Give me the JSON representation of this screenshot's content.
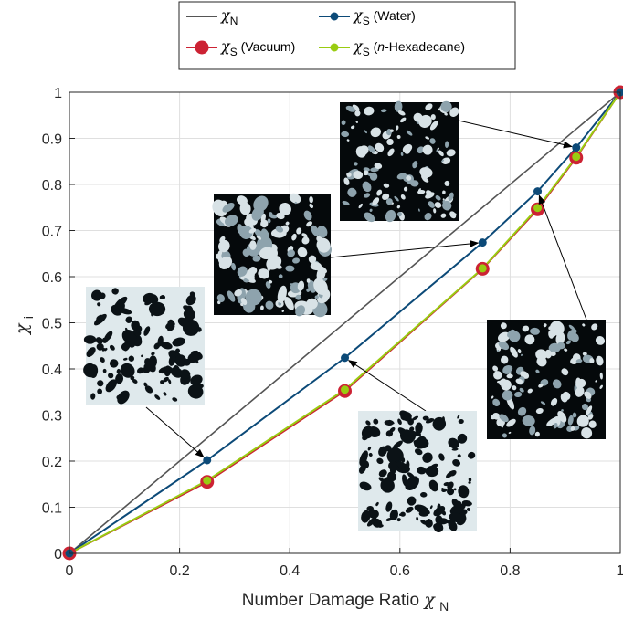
{
  "chart_data": {
    "type": "line",
    "title": "",
    "xlabel": "Number Damage Ratio",
    "xlabel_symbol": "χ",
    "xlabel_sub": "N",
    "ylabel_symbol": "χ",
    "ylabel_sub": "i",
    "xlim": [
      0,
      1
    ],
    "ylim": [
      0,
      1
    ],
    "grid": true,
    "legend_position": "top-center",
    "x_ticks": [
      "0",
      "0.2",
      "0.4",
      "0.6",
      "0.8",
      "1"
    ],
    "y_ticks": [
      "0",
      "0.1",
      "0.2",
      "0.3",
      "0.4",
      "0.5",
      "0.6",
      "0.7",
      "0.8",
      "0.9",
      "1"
    ],
    "x_tick_values": [
      0,
      0.2,
      0.4,
      0.6,
      0.8,
      1
    ],
    "y_tick_values": [
      0,
      0.1,
      0.2,
      0.3,
      0.4,
      0.5,
      0.6,
      0.7,
      0.8,
      0.9,
      1
    ],
    "series": [
      {
        "name_symbol": "χ",
        "name_sub": "N",
        "name_suffix": "",
        "color": "#555555",
        "marker": "none",
        "x": [
          0,
          1
        ],
        "y": [
          0,
          1
        ]
      },
      {
        "name_symbol": "χ",
        "name_sub": "S",
        "name_suffix": " (Water)",
        "color": "#0c4a78",
        "marker": "dot",
        "x": [
          0,
          0.25,
          0.5,
          0.75,
          0.85,
          0.92,
          1
        ],
        "y": [
          0,
          0.202,
          0.424,
          0.674,
          0.785,
          0.88,
          1
        ]
      },
      {
        "name_symbol": "χ",
        "name_sub": "S",
        "name_suffix": " (Vacuum)",
        "color": "#cc2233",
        "marker": "big-circle",
        "x": [
          0,
          0.25,
          0.5,
          0.75,
          0.85,
          0.92,
          1
        ],
        "y": [
          0,
          0.155,
          0.352,
          0.617,
          0.746,
          0.858,
          1
        ]
      },
      {
        "name_symbol": "χ",
        "name_sub": "S",
        "name_prefix": " (",
        "name_italic": "n",
        "name_suffix": "-Hexadecane)",
        "color": "#99cc11",
        "marker": "dot",
        "x": [
          0,
          0.25,
          0.5,
          0.75,
          0.85,
          0.92,
          1
        ],
        "y": [
          0,
          0.158,
          0.355,
          0.618,
          0.749,
          0.86,
          1
        ]
      }
    ],
    "insets": [
      {
        "name": "inset-025",
        "points_to": {
          "x": 0.25,
          "y": 0.202
        },
        "density": 0.82
      },
      {
        "name": "inset-050",
        "points_to": {
          "x": 0.5,
          "y": 0.424
        },
        "density": 0.6
      },
      {
        "name": "inset-075",
        "points_to": {
          "x": 0.75,
          "y": 0.674
        },
        "density": 0.38
      },
      {
        "name": "inset-085",
        "points_to": {
          "x": 0.85,
          "y": 0.785
        },
        "density": 0.22
      },
      {
        "name": "inset-092",
        "points_to": {
          "x": 0.92,
          "y": 0.88
        },
        "density": 0.16
      }
    ]
  }
}
